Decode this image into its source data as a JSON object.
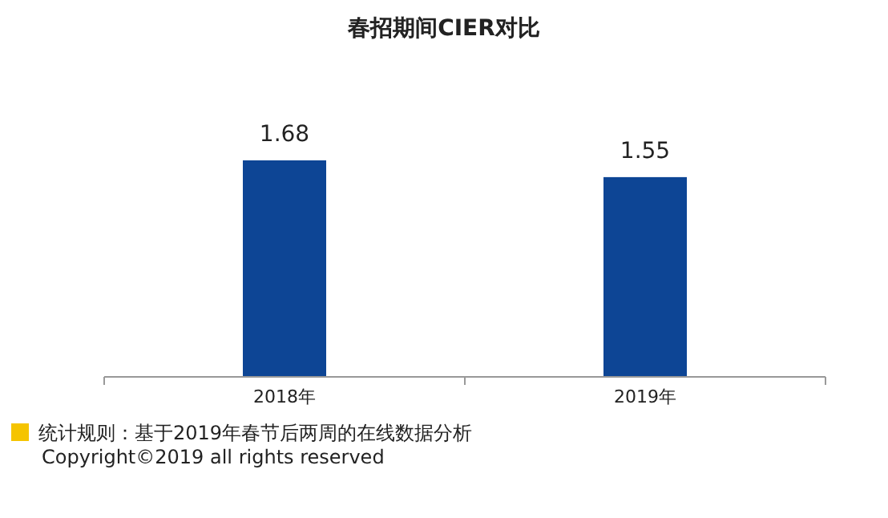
{
  "chart_data": {
    "type": "bar",
    "title": "春招期间CIER对比",
    "categories": [
      "2018年",
      "2019年"
    ],
    "values": [
      1.68,
      1.55
    ],
    "color": "#0d4595",
    "data_labels": true,
    "annotations": [
      "统计规则：基于2019年春节后两周的在线数据分析",
      "Copyright©2019 all rights reserved"
    ]
  }
}
